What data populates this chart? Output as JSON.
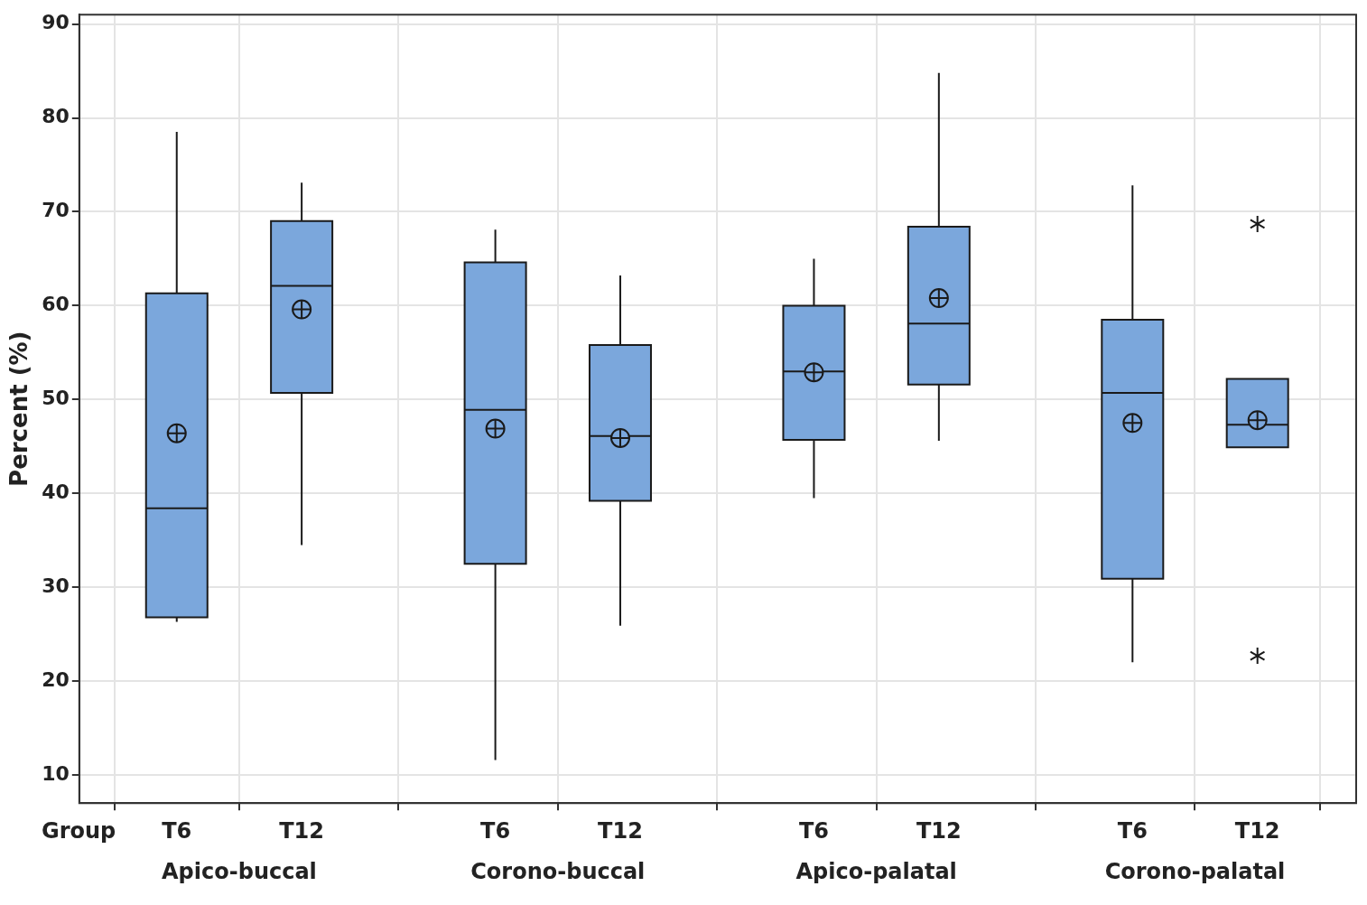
{
  "chart_data": {
    "type": "box",
    "ylabel": "Percent (%)",
    "xlabel": "Group",
    "categories": [
      "T6",
      "T12",
      "T6",
      "T12",
      "T6",
      "T12",
      "T6",
      "T12"
    ],
    "annotations": [
      "Apico-buccal",
      "Corono-buccal",
      "Apico-palatal",
      "Corono-palatal"
    ],
    "color": "#7ba7dc",
    "boxes": [
      {
        "low": 26.3,
        "q1": 26.8,
        "median": 38.4,
        "q3": 61.3,
        "high": 78.5,
        "mean": 46.4
      },
      {
        "low": 34.5,
        "q1": 50.7,
        "median": 62.1,
        "q3": 69.0,
        "high": 73.1,
        "mean": 59.6
      },
      {
        "low": 11.6,
        "q1": 32.5,
        "median": 48.9,
        "q3": 64.6,
        "high": 68.1,
        "mean": 46.9
      },
      {
        "low": 25.9,
        "q1": 39.2,
        "median": 46.1,
        "q3": 55.8,
        "high": 63.2,
        "mean": 45.9
      },
      {
        "low": 39.5,
        "q1": 45.7,
        "median": 53.0,
        "q3": 60.0,
        "high": 65.0,
        "mean": 52.9
      },
      {
        "low": 45.6,
        "q1": 51.6,
        "median": 58.1,
        "q3": 68.4,
        "high": 84.8,
        "mean": 60.8
      },
      {
        "low": 22.0,
        "q1": 30.9,
        "median": 50.7,
        "q3": 58.5,
        "high": 72.8,
        "mean": 47.5
      },
      {
        "low": 44.9,
        "q1": 44.9,
        "median": 47.3,
        "q3": 52.2,
        "high": 52.2,
        "mean": 47.8,
        "outliers": [
          68.7,
          22.7
        ]
      }
    ],
    "ylim": [
      7,
      91
    ],
    "yticks": [
      10,
      20,
      30,
      40,
      50,
      60,
      70,
      80,
      90
    ],
    "grid": true,
    "legend": false
  }
}
